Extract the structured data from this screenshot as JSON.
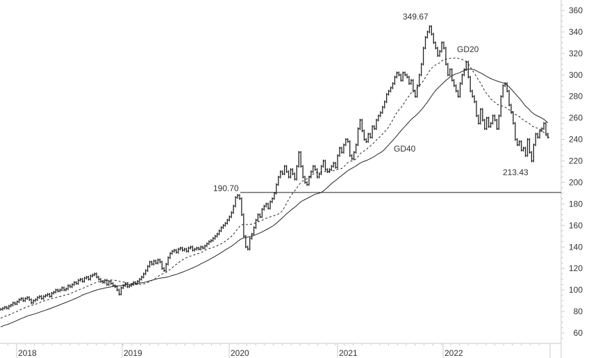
{
  "chart_data": {
    "type": "ohlc",
    "interval": "weekly",
    "xlabel": "",
    "ylabel": "",
    "x_ticks": [
      "2018",
      "2019",
      "2020",
      "2021",
      "2022"
    ],
    "y_ticks": [
      60,
      80,
      100,
      120,
      140,
      160,
      180,
      200,
      220,
      240,
      260,
      280,
      300,
      320,
      340,
      360
    ],
    "ylim": [
      55,
      368
    ],
    "grid": false,
    "y_axis_position": "right",
    "series": [
      {
        "values": [
          82,
          83,
          84,
          83,
          85,
          86,
          88,
          87,
          89,
          91,
          92,
          90,
          92,
          93,
          91,
          88,
          90,
          91,
          93,
          94,
          92,
          94,
          95,
          96,
          94,
          97,
          98,
          100,
          99,
          100,
          102,
          100,
          101,
          104,
          103,
          105,
          107,
          106,
          109,
          110,
          108,
          111,
          112,
          110,
          113,
          114,
          115,
          112,
          110,
          108,
          107,
          109,
          105,
          108,
          106,
          104,
          103,
          100,
          96,
          102,
          104,
          106,
          103,
          104,
          105,
          107,
          106,
          108,
          110,
          112,
          115,
          118,
          122,
          126,
          124,
          127,
          125,
          128,
          126,
          120,
          118,
          124,
          130,
          134,
          136,
          137,
          135,
          138,
          139,
          137,
          138,
          136,
          139,
          140,
          137,
          138,
          139,
          138,
          140,
          139,
          141,
          143,
          145,
          146,
          148,
          150,
          152,
          155,
          158,
          160,
          162,
          165,
          168,
          172,
          178,
          186,
          188,
          185,
          170,
          150,
          140,
          138,
          148,
          152,
          158,
          165,
          170,
          168,
          175,
          178,
          180,
          176,
          182,
          185,
          190,
          198,
          205,
          210,
          208,
          215,
          210,
          205,
          212,
          208,
          203,
          215,
          228,
          215,
          205,
          200,
          198,
          205,
          210,
          215,
          212,
          205,
          208,
          215,
          220,
          212,
          210,
          212,
          215,
          218,
          214,
          225,
          232,
          228,
          235,
          240,
          238,
          225,
          222,
          228,
          235,
          250,
          258,
          248,
          240,
          238,
          245,
          242,
          252,
          250,
          258,
          262,
          265,
          270,
          275,
          282,
          285,
          288,
          292,
          298,
          302,
          300,
          295,
          302,
          300,
          298,
          292,
          295,
          285,
          280,
          290,
          300,
          310,
          325,
          335,
          340,
          345,
          338,
          330,
          325,
          318,
          322,
          330,
          325,
          310,
          300,
          305,
          295,
          290,
          285,
          280,
          292,
          300,
          305,
          312,
          298,
          285,
          280,
          275,
          262,
          255,
          268,
          258,
          250,
          260,
          252,
          255,
          262,
          258,
          250,
          262,
          280,
          290,
          292,
          285,
          272,
          265,
          255,
          240,
          235,
          238,
          230,
          232,
          225,
          240,
          228,
          220,
          235,
          245,
          242,
          248,
          250,
          255,
          245,
          242
        ]
      }
    ],
    "moving_averages": [
      {
        "name": "GD20",
        "period": 20,
        "style": "dashed"
      },
      {
        "name": "GD40",
        "period": 40,
        "style": "solid"
      }
    ],
    "horizontal_line": {
      "value": 190.7,
      "label": "190.70"
    },
    "annotations": {
      "high": "349.67",
      "low": "213.43",
      "gd20": "GD20",
      "gd40": "GD40",
      "level": "190.70"
    },
    "colors": {
      "bars": "#222222",
      "axis": "#c8c8c8",
      "text": "#333333"
    }
  }
}
